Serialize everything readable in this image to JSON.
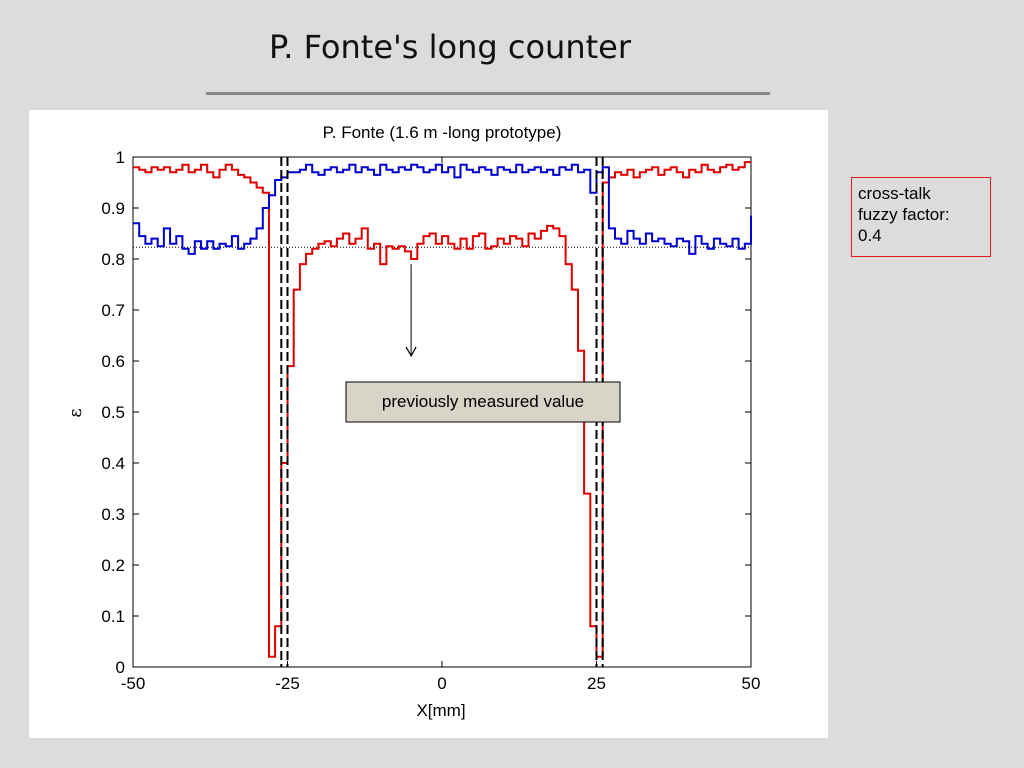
{
  "slide": {
    "title": "P. Fonte's long counter"
  },
  "note": {
    "lines": [
      "cross-talk",
      "fuzzy factor:",
      "0.4"
    ],
    "border_color": "#e02020"
  },
  "annotation": {
    "label": "previously measured value",
    "box_color": "#d8d4c8"
  },
  "chart_data": {
    "type": "line",
    "title": "P. Fonte (1.6 m -long prototype)",
    "xlabel": "X[mm]",
    "ylabel": "ε",
    "xlim": [
      -50,
      50
    ],
    "ylim": [
      0,
      1
    ],
    "xticks": [
      -50,
      -25,
      0,
      25,
      50
    ],
    "xtick_labels": [
      "-50",
      "-25",
      "0",
      "25",
      "50"
    ],
    "yticks": [
      0,
      0.1,
      0.2,
      0.3,
      0.4,
      0.5,
      0.6,
      0.7,
      0.8,
      0.9,
      1
    ],
    "ytick_labels": [
      "0",
      "0.1",
      "0.2",
      "0.3",
      "0.4",
      "0.5",
      "0.6",
      "0.7",
      "0.8",
      "0.9",
      "1"
    ],
    "step": true,
    "grid": false,
    "reference_line": {
      "y": 0.823,
      "style": "dotted"
    },
    "vertical_lines": [
      -26,
      -25,
      25,
      26
    ],
    "annotation_arrow": {
      "from": [
        -5,
        0.79
      ],
      "to": [
        -5,
        0.61
      ]
    },
    "series": [
      {
        "color": "#e00000",
        "x": [
          -50,
          -49,
          -48,
          -47,
          -46,
          -45,
          -44,
          -43,
          -42,
          -41,
          -40,
          -39,
          -38,
          -37,
          -36,
          -35,
          -34,
          -33,
          -32,
          -31,
          -30,
          -29,
          -28,
          -27,
          -26,
          -25,
          -24,
          -23,
          -22,
          -21,
          -20,
          -19,
          -18,
          -17,
          -16,
          -15,
          -14,
          -13,
          -12,
          -11,
          -10,
          -9,
          -8,
          -7,
          -6,
          -5,
          -4,
          -3,
          -2,
          -1,
          0,
          1,
          2,
          3,
          4,
          5,
          6,
          7,
          8,
          9,
          10,
          11,
          12,
          13,
          14,
          15,
          16,
          17,
          18,
          19,
          20,
          21,
          22,
          23,
          24,
          25,
          26,
          27,
          28,
          29,
          30,
          31,
          32,
          33,
          34,
          35,
          36,
          37,
          38,
          39,
          40,
          41,
          42,
          43,
          44,
          45,
          46,
          47,
          48,
          49,
          50
        ],
        "y": [
          0.98,
          0.975,
          0.97,
          0.98,
          0.975,
          0.98,
          0.97,
          0.975,
          0.985,
          0.97,
          0.975,
          0.985,
          0.97,
          0.96,
          0.975,
          0.985,
          0.975,
          0.965,
          0.96,
          0.95,
          0.94,
          0.93,
          0.02,
          0.08,
          0.4,
          0.59,
          0.74,
          0.79,
          0.81,
          0.82,
          0.83,
          0.835,
          0.825,
          0.84,
          0.85,
          0.83,
          0.84,
          0.86,
          0.82,
          0.83,
          0.79,
          0.825,
          0.82,
          0.825,
          0.815,
          0.8,
          0.83,
          0.845,
          0.85,
          0.83,
          0.845,
          0.83,
          0.82,
          0.84,
          0.82,
          0.845,
          0.85,
          0.82,
          0.825,
          0.84,
          0.83,
          0.845,
          0.84,
          0.825,
          0.85,
          0.84,
          0.855,
          0.865,
          0.86,
          0.845,
          0.79,
          0.74,
          0.62,
          0.34,
          0.08,
          0.02,
          0.95,
          0.96,
          0.97,
          0.965,
          0.975,
          0.96,
          0.97,
          0.975,
          0.98,
          0.965,
          0.975,
          0.98,
          0.97,
          0.96,
          0.975,
          0.97,
          0.985,
          0.975,
          0.97,
          0.98,
          0.985,
          0.975,
          0.98,
          0.99,
          0.99
        ]
      },
      {
        "color": "#0000d0",
        "x": [
          -50,
          -49,
          -48,
          -47,
          -46,
          -45,
          -44,
          -43,
          -42,
          -41,
          -40,
          -39,
          -38,
          -37,
          -36,
          -35,
          -34,
          -33,
          -32,
          -31,
          -30,
          -29,
          -28,
          -27,
          -26,
          -25,
          -24,
          -23,
          -22,
          -21,
          -20,
          -19,
          -18,
          -17,
          -16,
          -15,
          -14,
          -13,
          -12,
          -11,
          -10,
          -9,
          -8,
          -7,
          -6,
          -5,
          -4,
          -3,
          -2,
          -1,
          0,
          1,
          2,
          3,
          4,
          5,
          6,
          7,
          8,
          9,
          10,
          11,
          12,
          13,
          14,
          15,
          16,
          17,
          18,
          19,
          20,
          21,
          22,
          23,
          24,
          25,
          26,
          27,
          28,
          29,
          30,
          31,
          32,
          33,
          34,
          35,
          36,
          37,
          38,
          39,
          40,
          41,
          42,
          43,
          44,
          45,
          46,
          47,
          48,
          49,
          50
        ],
        "y": [
          0.87,
          0.845,
          0.83,
          0.84,
          0.825,
          0.86,
          0.83,
          0.845,
          0.82,
          0.81,
          0.835,
          0.82,
          0.835,
          0.82,
          0.83,
          0.825,
          0.845,
          0.82,
          0.83,
          0.84,
          0.86,
          0.9,
          0.925,
          0.955,
          0.96,
          0.97,
          0.97,
          0.975,
          0.985,
          0.97,
          0.965,
          0.975,
          0.98,
          0.97,
          0.975,
          0.985,
          0.97,
          0.98,
          0.975,
          0.965,
          0.985,
          0.975,
          0.97,
          0.98,
          0.975,
          0.985,
          0.98,
          0.97,
          0.975,
          0.985,
          0.97,
          0.98,
          0.96,
          0.985,
          0.975,
          0.97,
          0.98,
          0.975,
          0.965,
          0.98,
          0.975,
          0.97,
          0.985,
          0.97,
          0.975,
          0.98,
          0.97,
          0.975,
          0.965,
          0.98,
          0.975,
          0.985,
          0.97,
          0.975,
          0.93,
          0.97,
          0.98,
          0.86,
          0.84,
          0.83,
          0.855,
          0.84,
          0.83,
          0.85,
          0.835,
          0.84,
          0.83,
          0.825,
          0.84,
          0.835,
          0.81,
          0.845,
          0.83,
          0.82,
          0.84,
          0.83,
          0.825,
          0.84,
          0.82,
          0.83,
          0.885
        ]
      }
    ]
  }
}
